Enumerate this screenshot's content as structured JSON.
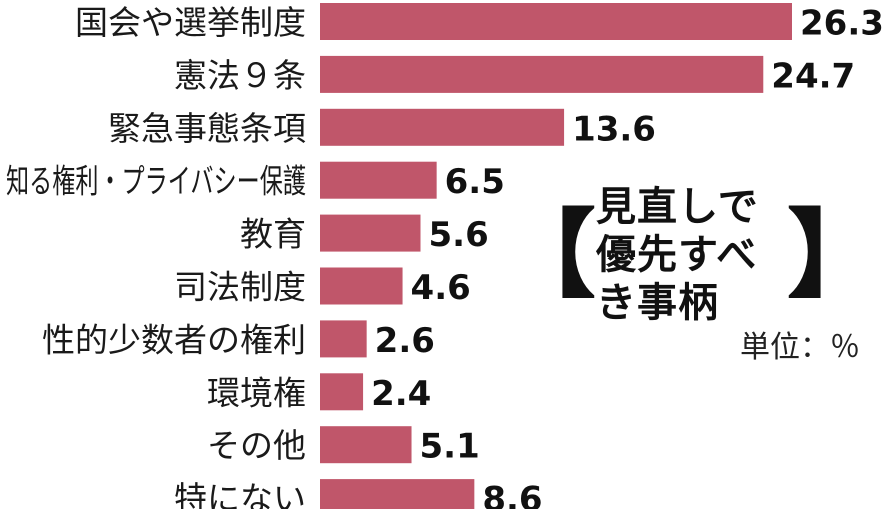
{
  "chart_data": {
    "type": "bar",
    "orientation": "horizontal",
    "title_lines": [
      "見直しで",
      "優先すべき事柄"
    ],
    "unit_label": "単位：％",
    "categories": [
      "国会や選挙制度",
      "憲法９条",
      "緊急事態条項",
      "知る権利・プライバシー保護",
      "教育",
      "司法制度",
      "性的少数者の権利",
      "環境権",
      "その他",
      "特にない"
    ],
    "values": [
      26.3,
      24.7,
      13.6,
      6.5,
      5.6,
      4.6,
      2.6,
      2.4,
      5.1,
      8.6
    ],
    "value_labels": [
      "26.3",
      "24.7",
      "13.6",
      "6.5",
      "5.6",
      "4.6",
      "2.6",
      "2.4",
      "5.1",
      "8.6"
    ],
    "xlim": [
      0,
      26.3
    ],
    "bar_color": "#c0566a",
    "grid": false,
    "legend": "none"
  }
}
